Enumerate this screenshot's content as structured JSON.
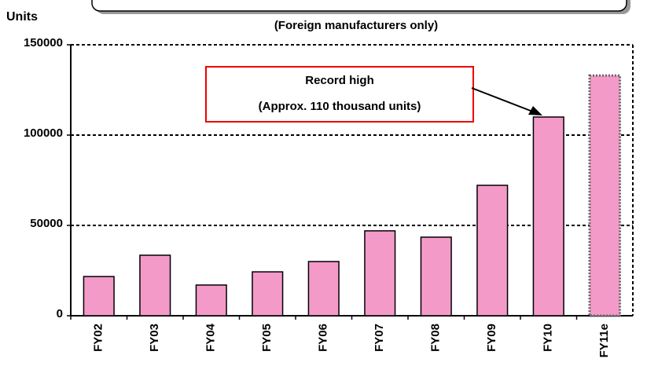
{
  "chart_data": {
    "type": "bar",
    "subtitle": "(Foreign manufacturers only)",
    "y_label": "Units",
    "annotation": [
      "Record high",
      "(Approx. 110 thousand units)"
    ],
    "categories": [
      "FY02",
      "FY03",
      "FY04",
      "FY05",
      "FY06",
      "FY07",
      "FY08",
      "FY09",
      "FY10",
      "FY11e"
    ],
    "values": [
      21700,
      33500,
      17000,
      24300,
      30000,
      47000,
      43500,
      72200,
      110000,
      133000
    ],
    "color": "#f49ac9",
    "ylim": [
      0,
      150000
    ],
    "yticks": [
      0,
      50000,
      100000,
      150000
    ],
    "grid": true
  }
}
